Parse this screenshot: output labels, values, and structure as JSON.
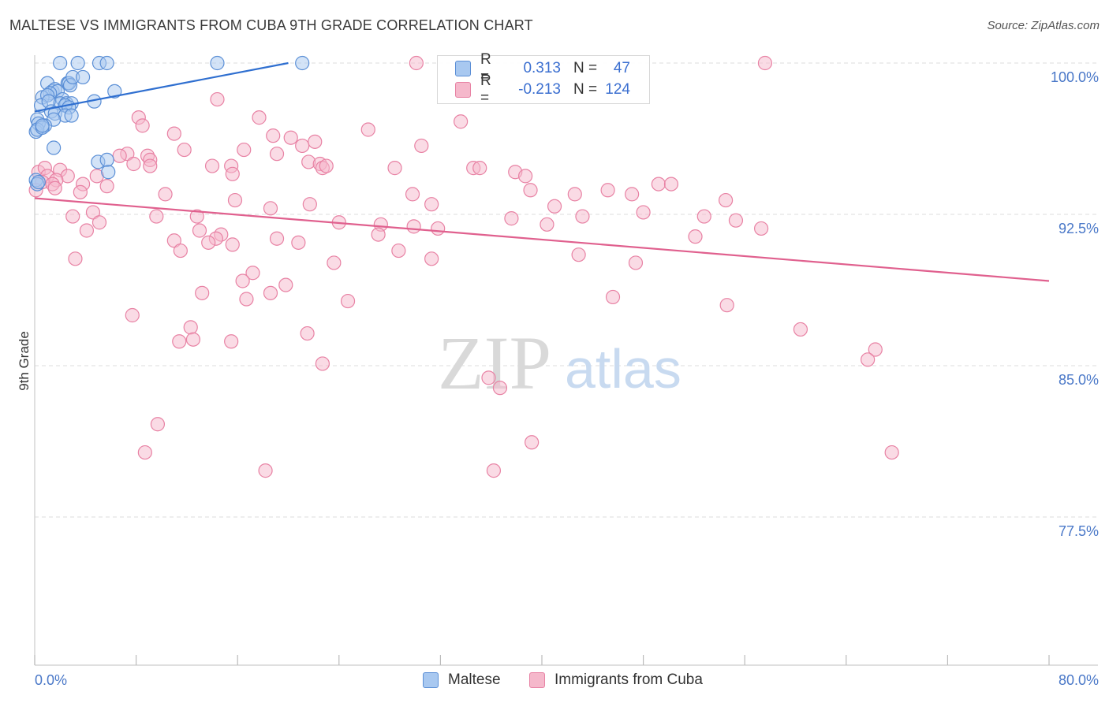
{
  "title": "MALTESE VS IMMIGRANTS FROM CUBA 9TH GRADE CORRELATION CHART",
  "source": "Source: ZipAtlas.com",
  "watermark": {
    "zip": "ZIP",
    "atlas": "atlas"
  },
  "legend": {
    "rows": [
      {
        "r_label": "R =",
        "r_value": "0.313",
        "n_label": "N =",
        "n_value": "47"
      },
      {
        "r_label": "R =",
        "r_value": "-0.213",
        "n_label": "N =",
        "n_value": "124"
      }
    ]
  },
  "bottom_legend": [
    "Maltese",
    "Immigrants from Cuba"
  ],
  "colors": {
    "blue_fill": "#a8c8f0",
    "blue_stroke": "#5b8fd6",
    "blue_line": "#2f6fd0",
    "pink_fill": "#f5b8cb",
    "pink_stroke": "#e882a4",
    "pink_line": "#e0608e",
    "tick_text": "#4a78c8",
    "grid": "#dddddd"
  },
  "chart_data": {
    "type": "scatter",
    "title": "MALTESE VS IMMIGRANTS FROM CUBA 9TH GRADE CORRELATION CHART",
    "xlabel": "",
    "ylabel": "9th Grade",
    "xlim": [
      0,
      80
    ],
    "ylim": [
      71.0,
      101.0
    ],
    "x_tick_labels": [
      "0.0%",
      "80.0%"
    ],
    "y_ticks": [
      77.5,
      85.0,
      92.5,
      100.0
    ],
    "y_tick_labels": [
      "77.5%",
      "85.0%",
      "92.5%",
      "100.0%"
    ],
    "series": [
      {
        "name": "Maltese",
        "R": 0.313,
        "N": 47,
        "trend": {
          "x": [
            0,
            20.0
          ],
          "y": [
            97.6,
            100.0
          ]
        },
        "points": [
          [
            2.0,
            100
          ],
          [
            3.4,
            100
          ],
          [
            5.1,
            100
          ],
          [
            5.7,
            100
          ],
          [
            14.4,
            100
          ],
          [
            21.1,
            100
          ],
          [
            1.0,
            99.0
          ],
          [
            2.6,
            99.0
          ],
          [
            2.7,
            99.0
          ],
          [
            2.8,
            98.9
          ],
          [
            3.0,
            99.3
          ],
          [
            3.8,
            99.3
          ],
          [
            1.4,
            98.6
          ],
          [
            1.6,
            98.7
          ],
          [
            1.8,
            98.6
          ],
          [
            1.2,
            98.5
          ],
          [
            0.6,
            98.3
          ],
          [
            1.0,
            98.4
          ],
          [
            6.3,
            98.6
          ],
          [
            2.2,
            98.2
          ],
          [
            2.0,
            98.0
          ],
          [
            2.5,
            98.0
          ],
          [
            2.9,
            98.0
          ],
          [
            4.7,
            98.1
          ],
          [
            0.5,
            97.9
          ],
          [
            1.1,
            98.1
          ],
          [
            2.4,
            97.9
          ],
          [
            2.7,
            97.8
          ],
          [
            1.3,
            97.6
          ],
          [
            1.6,
            97.5
          ],
          [
            2.4,
            97.4
          ],
          [
            2.9,
            97.4
          ],
          [
            1.5,
            97.2
          ],
          [
            0.8,
            96.9
          ],
          [
            0.2,
            97.2
          ],
          [
            0.3,
            97.0
          ],
          [
            0.1,
            96.6
          ],
          [
            0.2,
            96.7
          ],
          [
            0.6,
            96.8
          ],
          [
            1.5,
            95.8
          ],
          [
            5.0,
            95.1
          ],
          [
            5.7,
            95.2
          ],
          [
            5.8,
            94.6
          ],
          [
            0.1,
            94.2
          ],
          [
            0.2,
            94.0
          ],
          [
            0.3,
            94.1
          ],
          [
            0.6,
            96.9
          ]
        ]
      },
      {
        "name": "Immigrants from Cuba",
        "R": -0.213,
        "N": 124,
        "trend": {
          "x": [
            0,
            80
          ],
          "y": [
            93.3,
            89.2
          ]
        },
        "points": [
          [
            30.1,
            100
          ],
          [
            57.6,
            100
          ],
          [
            14.4,
            98.2
          ],
          [
            33.6,
            97.1
          ],
          [
            17.7,
            97.3
          ],
          [
            8.2,
            97.3
          ],
          [
            26.3,
            96.7
          ],
          [
            8.5,
            96.9
          ],
          [
            11.0,
            96.5
          ],
          [
            18.8,
            96.4
          ],
          [
            20.2,
            96.3
          ],
          [
            22.1,
            96.1
          ],
          [
            21.1,
            95.9
          ],
          [
            30.5,
            95.9
          ],
          [
            16.5,
            95.7
          ],
          [
            11.8,
            95.7
          ],
          [
            7.3,
            95.5
          ],
          [
            6.7,
            95.4
          ],
          [
            19.1,
            95.5
          ],
          [
            8.9,
            95.4
          ],
          [
            9.1,
            95.2
          ],
          [
            21.6,
            95.1
          ],
          [
            22.5,
            95.0
          ],
          [
            9.1,
            94.9
          ],
          [
            14.0,
            94.9
          ],
          [
            15.5,
            94.9
          ],
          [
            28.4,
            94.8
          ],
          [
            34.6,
            94.8
          ],
          [
            35.1,
            94.8
          ],
          [
            37.9,
            94.6
          ],
          [
            38.7,
            94.4
          ],
          [
            15.6,
            94.5
          ],
          [
            22.7,
            94.8
          ],
          [
            0.3,
            94.6
          ],
          [
            0.8,
            94.8
          ],
          [
            1.0,
            94.4
          ],
          [
            2.0,
            94.7
          ],
          [
            2.6,
            94.4
          ],
          [
            4.9,
            94.4
          ],
          [
            1.7,
            94.2
          ],
          [
            0.6,
            94.1
          ],
          [
            1.4,
            94.0
          ],
          [
            3.8,
            94.0
          ],
          [
            5.7,
            93.9
          ],
          [
            0.1,
            93.7
          ],
          [
            1.6,
            93.8
          ],
          [
            3.6,
            93.6
          ],
          [
            10.3,
            93.5
          ],
          [
            15.8,
            93.2
          ],
          [
            18.6,
            92.8
          ],
          [
            29.8,
            93.5
          ],
          [
            31.3,
            93.0
          ],
          [
            39.1,
            93.7
          ],
          [
            42.6,
            93.5
          ],
          [
            45.2,
            93.7
          ],
          [
            47.1,
            93.5
          ],
          [
            49.2,
            94.0
          ],
          [
            50.2,
            94.0
          ],
          [
            54.5,
            93.2
          ],
          [
            41.0,
            92.9
          ],
          [
            48.0,
            92.6
          ],
          [
            52.8,
            92.4
          ],
          [
            55.3,
            92.2
          ],
          [
            37.6,
            92.3
          ],
          [
            40.4,
            92.0
          ],
          [
            43.2,
            92.4
          ],
          [
            4.6,
            92.6
          ],
          [
            3.0,
            92.4
          ],
          [
            9.6,
            92.4
          ],
          [
            12.8,
            92.4
          ],
          [
            24.0,
            92.1
          ],
          [
            27.3,
            92.0
          ],
          [
            5.1,
            92.1
          ],
          [
            29.9,
            91.9
          ],
          [
            31.8,
            91.8
          ],
          [
            4.1,
            91.7
          ],
          [
            13.0,
            91.7
          ],
          [
            27.1,
            91.5
          ],
          [
            52.1,
            91.4
          ],
          [
            57.3,
            91.8
          ],
          [
            14.7,
            91.5
          ],
          [
            14.3,
            91.3
          ],
          [
            19.1,
            91.3
          ],
          [
            11.0,
            91.2
          ],
          [
            13.7,
            91.1
          ],
          [
            20.8,
            91.1
          ],
          [
            15.6,
            91.0
          ],
          [
            11.5,
            90.7
          ],
          [
            28.7,
            90.7
          ],
          [
            42.9,
            90.5
          ],
          [
            3.2,
            90.3
          ],
          [
            31.3,
            90.3
          ],
          [
            23.6,
            90.1
          ],
          [
            47.4,
            90.1
          ],
          [
            17.2,
            89.6
          ],
          [
            16.4,
            89.2
          ],
          [
            19.8,
            89.0
          ],
          [
            16.7,
            88.3
          ],
          [
            18.6,
            88.6
          ],
          [
            13.2,
            88.6
          ],
          [
            24.7,
            88.2
          ],
          [
            45.6,
            88.4
          ],
          [
            54.6,
            88.0
          ],
          [
            7.7,
            87.5
          ],
          [
            12.3,
            86.9
          ],
          [
            21.5,
            86.6
          ],
          [
            11.4,
            86.2
          ],
          [
            12.5,
            86.3
          ],
          [
            15.5,
            86.2
          ],
          [
            60.4,
            86.8
          ],
          [
            66.3,
            85.8
          ],
          [
            65.7,
            85.3
          ],
          [
            22.7,
            85.1
          ],
          [
            35.8,
            84.4
          ],
          [
            36.7,
            83.9
          ],
          [
            9.7,
            82.1
          ],
          [
            39.2,
            81.2
          ],
          [
            8.7,
            80.7
          ],
          [
            67.6,
            80.7
          ],
          [
            18.2,
            79.8
          ],
          [
            36.2,
            79.8
          ],
          [
            21.7,
            93.0
          ],
          [
            7.8,
            95.0
          ],
          [
            23.0,
            94.9
          ]
        ]
      }
    ]
  }
}
